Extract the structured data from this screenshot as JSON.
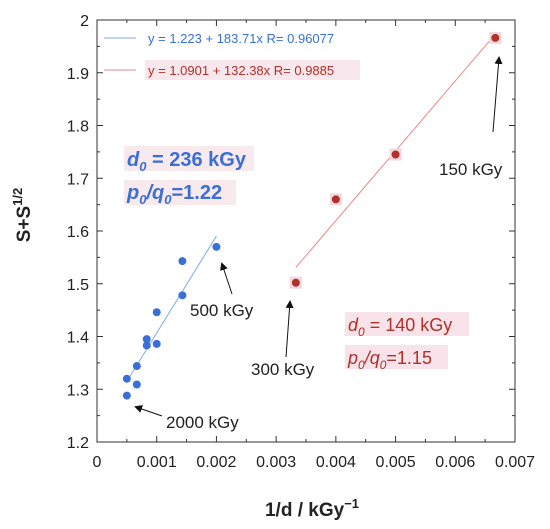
{
  "chart_data": {
    "type": "scatter",
    "xlabel": "1/d / kGy",
    "xlabel_sup": "−1",
    "ylabel": "S+S",
    "ylabel_sup": "1/2",
    "xlim": [
      0,
      0.007
    ],
    "ylim": [
      1.2,
      2.0
    ],
    "x_ticks": [
      "0",
      "0.001",
      "0.002",
      "0.003",
      "0.004",
      "0.005",
      "0.006",
      "0.007"
    ],
    "y_ticks": [
      "1.2",
      "1.3",
      "1.4",
      "1.5",
      "1.6",
      "1.7",
      "1.8",
      "1.9",
      "2"
    ],
    "grid": false,
    "series": [
      {
        "color": "#3a6fd8",
        "fit_equation": "y = 1.223 + 183.71x   R= 0.96077",
        "fit": {
          "intercept": 1.223,
          "slope": 183.71,
          "x_range": [
            0.0005,
            0.002
          ]
        },
        "points": [
          {
            "x": 0.0005,
            "y": 1.288
          },
          {
            "x": 0.0005,
            "y": 1.32
          },
          {
            "x": 0.000667,
            "y": 1.309
          },
          {
            "x": 0.000667,
            "y": 1.344
          },
          {
            "x": 0.000833,
            "y": 1.383
          },
          {
            "x": 0.000833,
            "y": 1.395
          },
          {
            "x": 0.001,
            "y": 1.386
          },
          {
            "x": 0.001,
            "y": 1.446
          },
          {
            "x": 0.00143,
            "y": 1.478
          },
          {
            "x": 0.00143,
            "y": 1.543
          },
          {
            "x": 0.002,
            "y": 1.57
          }
        ]
      },
      {
        "color": "#b0302a",
        "fit_equation": "y = 1.0901 + 132.38x   R= 0.9885",
        "fit": {
          "intercept": 1.0901,
          "slope": 132.38,
          "x_range": [
            0.00333,
            0.00667
          ]
        },
        "points": [
          {
            "x": 0.00333,
            "y": 1.502
          },
          {
            "x": 0.004,
            "y": 1.66
          },
          {
            "x": 0.005,
            "y": 1.745
          },
          {
            "x": 0.00667,
            "y": 1.966
          }
        ]
      }
    ],
    "annotations": [
      {
        "text": "150 kGy",
        "color": "#222222"
      },
      {
        "text": "500 kGy",
        "color": "#222222"
      },
      {
        "text": "300 kGy",
        "color": "#222222"
      },
      {
        "text": "2000 kGy",
        "color": "#222222"
      }
    ],
    "param_boxes": [
      {
        "color": "#3a6fd8",
        "d0": "236 kGy",
        "ratio": "1.22"
      },
      {
        "color": "#b0302a",
        "d0": "140 kGy",
        "ratio": "1.15"
      }
    ]
  }
}
